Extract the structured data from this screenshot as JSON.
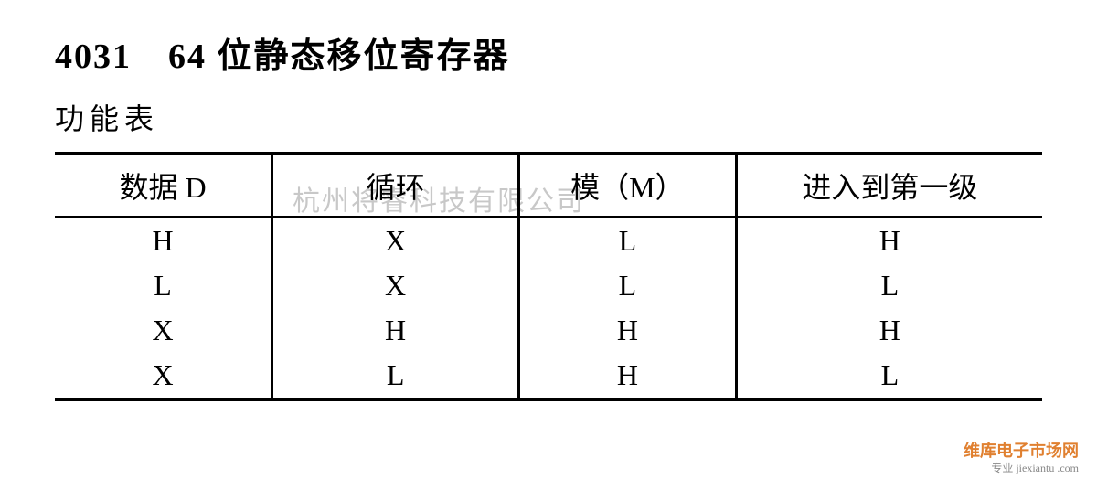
{
  "title": "4031　64 位静态移位寄存器",
  "subtitle": "功能表",
  "watermark_center": "杭州将睿科技有限公司",
  "watermark_corner_line1": "维库电子市场网",
  "watermark_corner_line2": "专业 jiexiantu .com",
  "table": {
    "columns": [
      "数据 D",
      "循环",
      "模（M）",
      "进入到第一级"
    ],
    "column_widths": [
      "22%",
      "25%",
      "22%",
      "31%"
    ],
    "rows": [
      [
        "H",
        "X",
        "L",
        "H"
      ],
      [
        "L",
        "X",
        "L",
        "L"
      ],
      [
        "X",
        "H",
        "H",
        "H"
      ],
      [
        "X",
        "L",
        "H",
        "L"
      ]
    ],
    "border_color": "#000000",
    "text_color": "#000000",
    "header_fontsize": 32,
    "cell_fontsize": 32,
    "background_color": "#ffffff"
  }
}
